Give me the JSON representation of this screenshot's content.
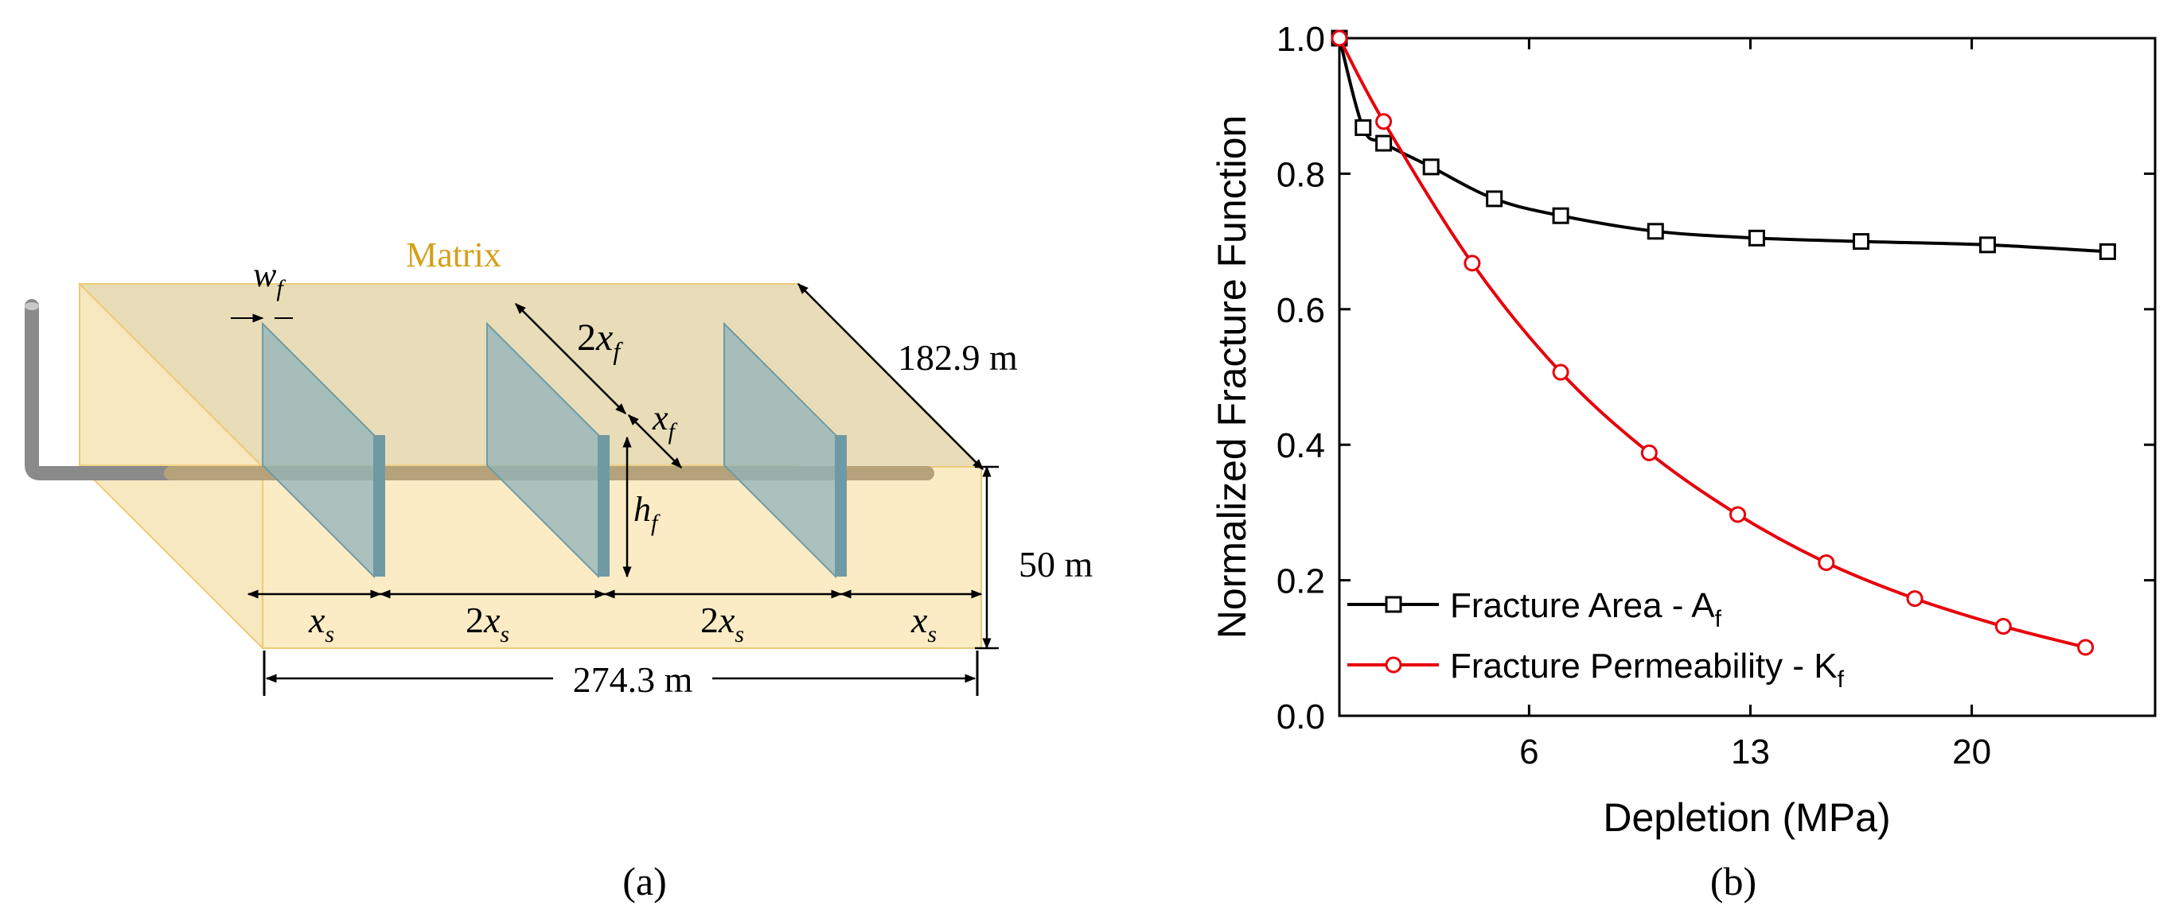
{
  "panel_a": {
    "caption": "(a)",
    "matrix_label": "Matrix",
    "width_label": "182.9 m",
    "height_label": "50 m",
    "length_label": "274.3 m",
    "symbols": {
      "wf_base": "w",
      "wf_sub": "f",
      "twoxf_coef": "2",
      "twoxf_base": "x",
      "twoxf_sub": "f",
      "xf_base": "x",
      "xf_sub": "f",
      "hf_base": "h",
      "hf_sub": "f",
      "xs_base": "x",
      "xs_sub": "s",
      "twoxs_coef": "2",
      "twoxs_base": "x",
      "twoxs_sub": "s"
    },
    "colors": {
      "matrix_label": "#d4a017",
      "matrix_fill": "#f7e4b5",
      "fracture_fill": "#8fb3bb",
      "well": "#8a8a8a"
    }
  },
  "panel_b": {
    "caption": "(b)"
  },
  "chart_data": {
    "type": "line",
    "xlabel": "Depletion (MPa)",
    "ylabel": "Normalized Fracture Function",
    "xlim": [
      0,
      25.8
    ],
    "ylim": [
      0,
      1.0
    ],
    "xticks": [
      6,
      13,
      20
    ],
    "yticks": [
      0.0,
      0.2,
      0.4,
      0.6,
      0.8,
      1.0
    ],
    "ytick_labels": [
      "0.0",
      "0.2",
      "0.4",
      "0.6",
      "0.8",
      "1.0"
    ],
    "legend_position": "bottom-left",
    "series": [
      {
        "name": "Fracture Area - A",
        "name_sub": "f",
        "color": "#000000",
        "marker": "square",
        "x": [
          0.0,
          0.75,
          1.4,
          2.9,
          4.9,
          7.0,
          10.0,
          13.2,
          16.5,
          20.5,
          24.3
        ],
        "y": [
          1.0,
          0.868,
          0.845,
          0.81,
          0.763,
          0.738,
          0.715,
          0.705,
          0.7,
          0.695,
          0.685
        ]
      },
      {
        "name": "Fracture Permeability - K",
        "name_sub": "f",
        "color": "#e8000b",
        "marker": "circle",
        "x": [
          0.0,
          1.4,
          4.2,
          7.0,
          9.8,
          12.6,
          15.4,
          18.2,
          21.0,
          23.6
        ],
        "y": [
          1.0,
          0.877,
          0.668,
          0.507,
          0.388,
          0.297,
          0.226,
          0.173,
          0.132,
          0.101
        ]
      }
    ]
  }
}
